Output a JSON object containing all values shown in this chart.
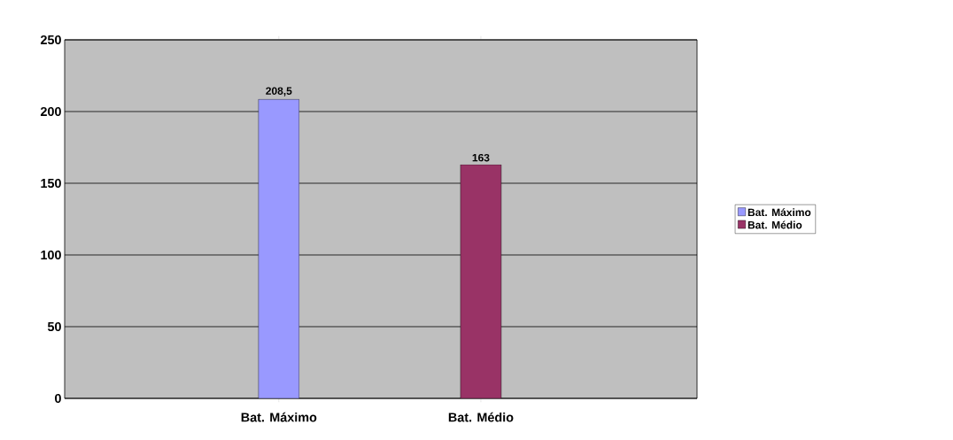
{
  "chart_data": {
    "type": "bar",
    "categories": [
      "Bat. Máximo",
      "Bat. Médio"
    ],
    "series": [
      {
        "name": "Bat. Máximo",
        "color": "#9999ff",
        "values": [
          208.5,
          null
        ],
        "value_labels": [
          "208,5",
          null
        ]
      },
      {
        "name": "Bat. Médio",
        "color": "#993366",
        "values": [
          null,
          163
        ],
        "value_labels": [
          null,
          "163"
        ]
      }
    ],
    "ylim": [
      0,
      250
    ],
    "yticks": [
      0,
      50,
      100,
      150,
      200,
      250
    ],
    "grid": "y",
    "legend": "right"
  }
}
